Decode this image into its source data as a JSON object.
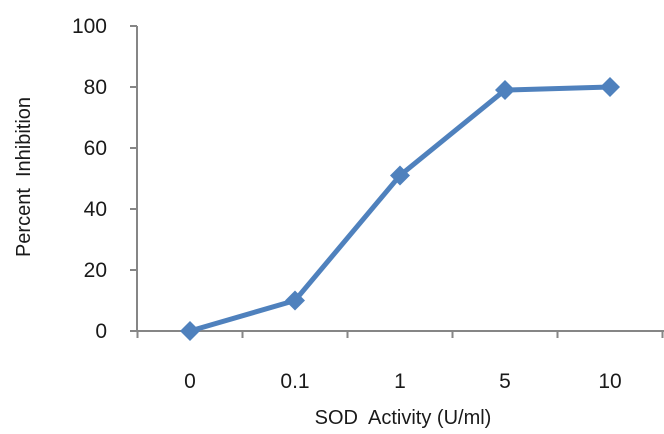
{
  "chart_data": {
    "type": "line",
    "title": "",
    "xlabel": "SOD  Activity (U/ml)",
    "ylabel": "Percent  Inhibition",
    "categories": [
      "0",
      "0.1",
      "1",
      "5",
      "10"
    ],
    "series": [
      {
        "values": [
          0,
          10,
          51,
          79,
          80
        ]
      }
    ],
    "ylim": [
      0,
      100
    ],
    "yticks": [
      "0",
      "20",
      "40",
      "60",
      "80",
      "100"
    ],
    "ytick_values": [
      0,
      20,
      40,
      60,
      80,
      100
    ],
    "grid": false,
    "legend": "none",
    "marker": "diamond",
    "line_color": "#4F81BD"
  }
}
